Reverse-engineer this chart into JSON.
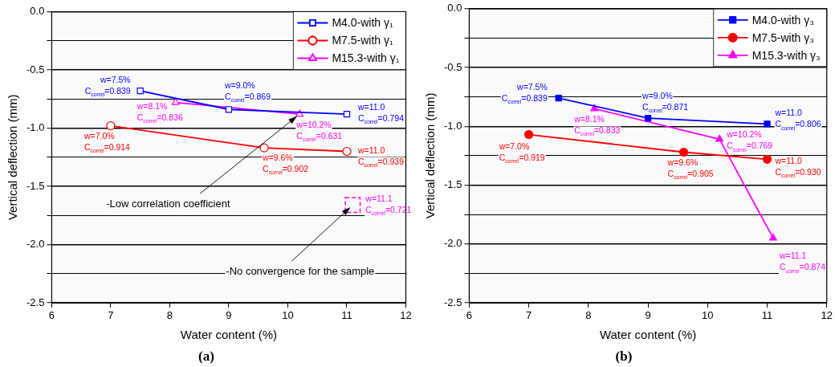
{
  "chart_data": [
    {
      "type": "line",
      "title": "(a)",
      "xlabel": "Water content (%)",
      "ylabel": "Vertical deflection (mm)",
      "xlim": [
        6,
        12
      ],
      "xticks": [
        6,
        7,
        8,
        9,
        10,
        11,
        12
      ],
      "ylim": [
        -2.5,
        0
      ],
      "yticks": [
        {
          "value": 0,
          "label": "0.0"
        },
        {
          "value": -0.25,
          "label": null
        },
        -0.5,
        {
          "value": -0.75,
          "label": null
        },
        {
          "value": -1,
          "label": "-1.0"
        },
        {
          "value": -1.25,
          "label": null
        },
        -1.5,
        {
          "value": -1.75,
          "label": null
        },
        {
          "value": -2,
          "label": "-2.0"
        },
        {
          "value": -2.25,
          "label": null
        },
        -2.5
      ],
      "grid": "y",
      "legend": "top right",
      "series": [
        {
          "name": "M4.0-with γ₁",
          "color": "#0000ff",
          "marker": "square",
          "x": [
            7.5,
            9,
            11
          ],
          "values": [
            -0.68,
            -0.84,
            -0.88
          ]
        },
        {
          "name": "M7.5-with γ₁",
          "color": "#ff0000",
          "marker": "circle",
          "x": [
            7,
            9.6,
            11
          ],
          "values": [
            -0.98,
            -1.17,
            -1.2
          ]
        },
        {
          "name": "M15.3-with γ₁",
          "color": "#ff00ff",
          "marker": "triangle",
          "x": [
            8.1,
            10.2
          ],
          "values": [
            -0.78,
            -0.88
          ]
        },
        {
          "type": "scatter",
          "color": "#ff00ff",
          "marker": "square",
          "line_style": "dashed",
          "x": [
            11.1
          ],
          "values": [
            -1.66
          ]
        }
      ],
      "annotations": [
        {
          "text": "w=7.5%\nC$_{correl}$=0.839",
          "x": 7.5,
          "y": -0.68
        },
        {
          "text": "w=9.0%\nC$_{correl}$=0.869",
          "x": 9,
          "y": -0.84
        },
        {
          "text": "w=11.0\nC$_{correl}$=0.794",
          "x": 11,
          "y": -0.88
        },
        {
          "text": "w=7.0%\nC$_{correl}$=0.914",
          "x": 7,
          "y": -0.98
        },
        {
          "text": "w=9.6%\nC$_{correl}$=0.902",
          "x": 9.6,
          "y": -1.17
        },
        {
          "text": "w=11.0\nC$_{correl}$=0.939",
          "x": 11,
          "y": -1.2
        },
        {
          "text": "w=8.1%\nC$_{correl}$=0.836",
          "x": 8.1,
          "y": -0.78
        },
        {
          "text": "w=10.2%\nC$_{correl}$=0.631",
          "x": 10.2,
          "y": -0.88
        },
        {
          "text": "w=11.1\nC$_{correl}$=0.721",
          "x": 11.1,
          "y": -1.66
        },
        {
          "text": "-Low correlation coefficient",
          "x": 10.2,
          "y": -0.88
        },
        {
          "text": "-No convergence for the sample",
          "x": 11.1,
          "y": -1.66
        }
      ]
    },
    {
      "type": "line",
      "title": "(b)",
      "xlabel": "Water content (%)",
      "ylabel": "Vertical deflection (mm)",
      "xlim": [
        6,
        12
      ],
      "xticks": [
        6,
        7,
        8,
        9,
        10,
        11,
        12
      ],
      "ylim": [
        -2.5,
        0
      ],
      "yticks": [
        {
          "value": 0,
          "label": "0.0"
        },
        {
          "value": -0.25,
          "label": null
        },
        -0.5,
        {
          "value": -0.75,
          "label": null
        },
        {
          "value": -1,
          "label": "-1.0"
        },
        {
          "value": -1.25,
          "label": null
        },
        -1.5,
        {
          "value": -1.75,
          "label": null
        },
        {
          "value": -2,
          "label": "-2.0"
        },
        {
          "value": -2.25,
          "label": null
        },
        -2.5
      ],
      "grid": "y",
      "legend": "top right",
      "series": [
        {
          "name": "M4.0-with γ₃",
          "color": "#0000ff",
          "marker": "square",
          "x": [
            7.5,
            9,
            11
          ],
          "values": [
            -0.76,
            -0.93,
            -0.98
          ]
        },
        {
          "name": "M7.5-with γ₃",
          "color": "#ff0000",
          "marker": "circle",
          "x": [
            7,
            9.6,
            11
          ],
          "values": [
            -1.07,
            -1.22,
            -1.28
          ]
        },
        {
          "name": "M15.3-with γ₃",
          "color": "#ff00ff",
          "marker": "triangle",
          "x": [
            8.1,
            10.2,
            11.1
          ],
          "values": [
            -0.85,
            -1.11,
            -1.95
          ]
        }
      ],
      "annotations": [
        {
          "text": "w=7.5%\nC$_{correl}$=0.839",
          "x": 7.5,
          "y": -0.76
        },
        {
          "text": "w=9.0%\nC$_{correl}$=0.871",
          "x": 9,
          "y": -0.93
        },
        {
          "text": "w=11.0\nC$_{correl}$=0.806",
          "x": 11,
          "y": -0.98
        },
        {
          "text": "w=7.0%\nC$_{correl}$=0.919",
          "x": 7,
          "y": -1.07
        },
        {
          "text": "w=9.6%\nC$_{correl}$=0.905",
          "x": 9.6,
          "y": -1.22
        },
        {
          "text": "w=11.0\nC$_{correl}$=0.930",
          "x": 11,
          "y": -1.28
        },
        {
          "text": "w=8.1%\nC$_{correl}$=0.833",
          "x": 8.1,
          "y": -0.85
        },
        {
          "text": "w=10.2%\nC$_{correl}$=0.769",
          "x": 10.2,
          "y": -1.11
        },
        {
          "text": "w=11.1\nC$_{correl}$=0.874",
          "x": 11.1,
          "y": -1.95
        }
      ]
    }
  ]
}
